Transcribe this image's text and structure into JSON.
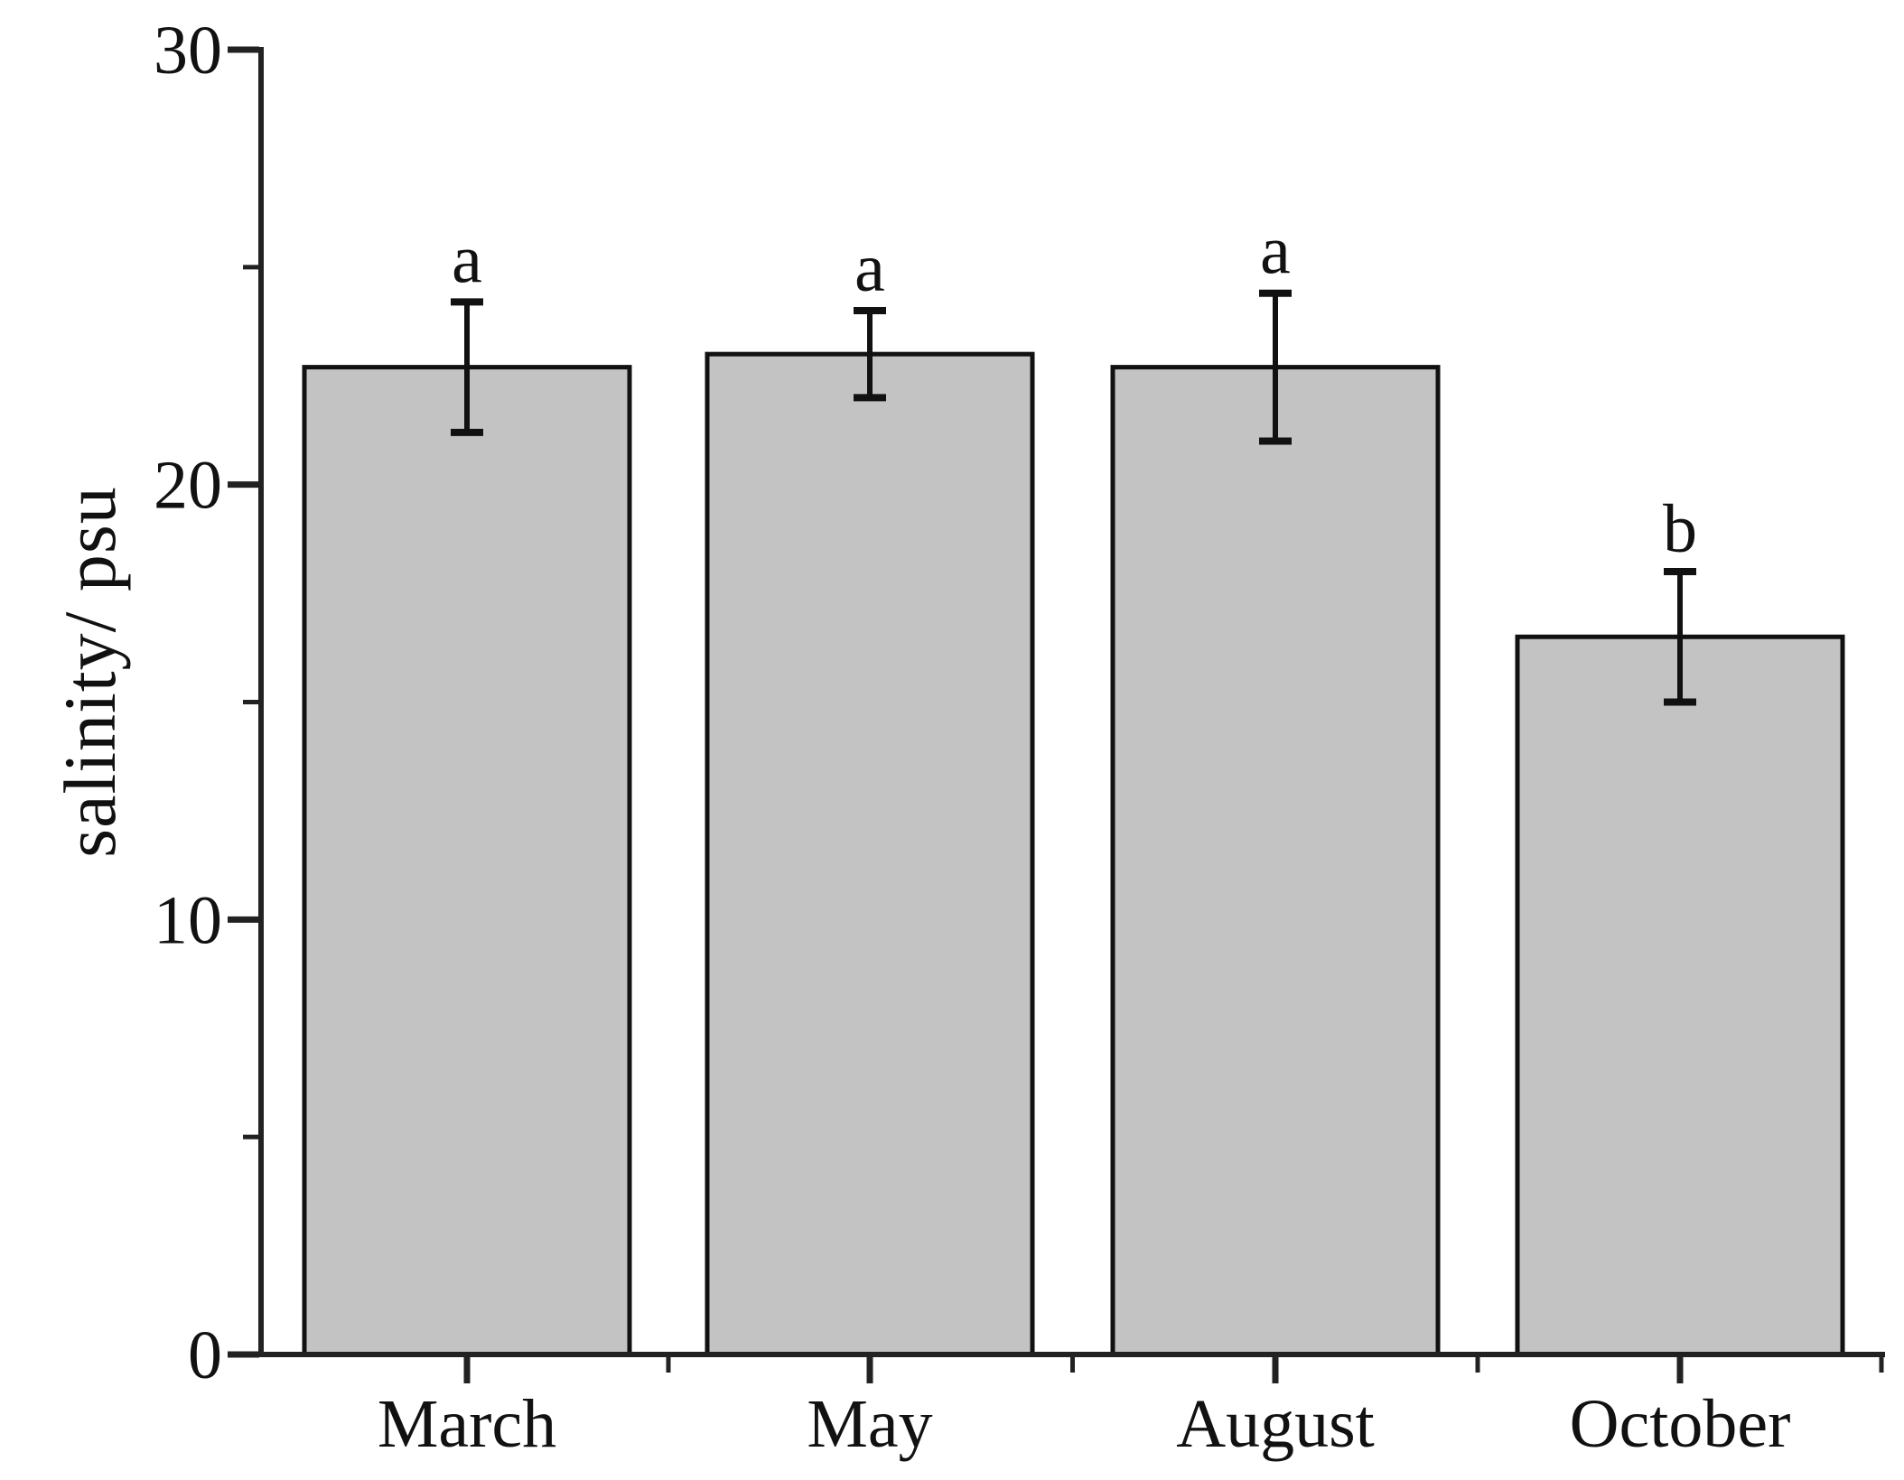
{
  "chart_data": {
    "type": "bar",
    "title": "",
    "xlabel": "",
    "ylabel": "salinity/ psu",
    "categories": [
      "March",
      "May",
      "August",
      "October"
    ],
    "values": [
      22.7,
      23.0,
      22.7,
      16.5
    ],
    "errors": [
      1.5,
      1.0,
      1.7,
      1.5
    ],
    "significance_letters": [
      "a",
      "a",
      "a",
      "b"
    ],
    "ylim": [
      0,
      30
    ],
    "yticks": [
      0,
      10,
      20,
      30
    ],
    "ytick_labels": [
      "0",
      "10",
      "20",
      "30"
    ],
    "y_minor_tick_step": 5,
    "x_minor_ticks_between_categories": true,
    "grid": false,
    "legend": null,
    "colors": {
      "bar_fill": "#c3c3c3",
      "bar_border": "#111111",
      "axis": "#222222",
      "text": "#111111",
      "background": "#ffffff"
    }
  }
}
